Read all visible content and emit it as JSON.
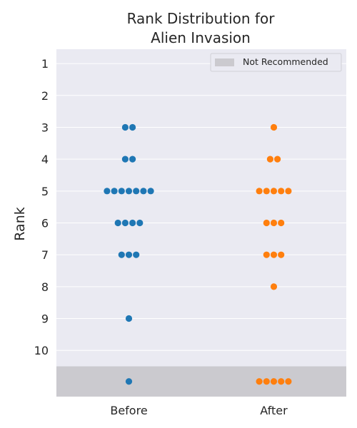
{
  "chart_data": {
    "type": "scatter",
    "title_lines": [
      "Rank Distribution for",
      "Alien Invasion"
    ],
    "xlabel": "",
    "ylabel": "Rank",
    "categories": [
      "Before",
      "After"
    ],
    "y_ticks": [
      1,
      2,
      3,
      4,
      5,
      6,
      7,
      8,
      9,
      10
    ],
    "ylim": [
      0.55,
      11.45
    ],
    "y_inverted": true,
    "not_recommended_band": {
      "label": "Not Recommended",
      "from": 10.5,
      "to": 11.45,
      "color": "#cbcacf"
    },
    "legend_position": "upper-right",
    "grid": true,
    "series": [
      {
        "category": "Before",
        "color": "#1f77b4",
        "ranks": [
          3,
          3,
          4,
          4,
          5,
          5,
          5,
          5,
          5,
          5,
          5,
          6,
          6,
          6,
          6,
          7,
          7,
          7,
          9
        ],
        "not_recommended_count": 1
      },
      {
        "category": "After",
        "color": "#ff7f0e",
        "ranks": [
          3,
          4,
          4,
          5,
          5,
          5,
          5,
          5,
          6,
          6,
          6,
          7,
          7,
          7,
          8
        ],
        "not_recommended_count": 5
      }
    ],
    "background_color": "#eaeaf2"
  }
}
